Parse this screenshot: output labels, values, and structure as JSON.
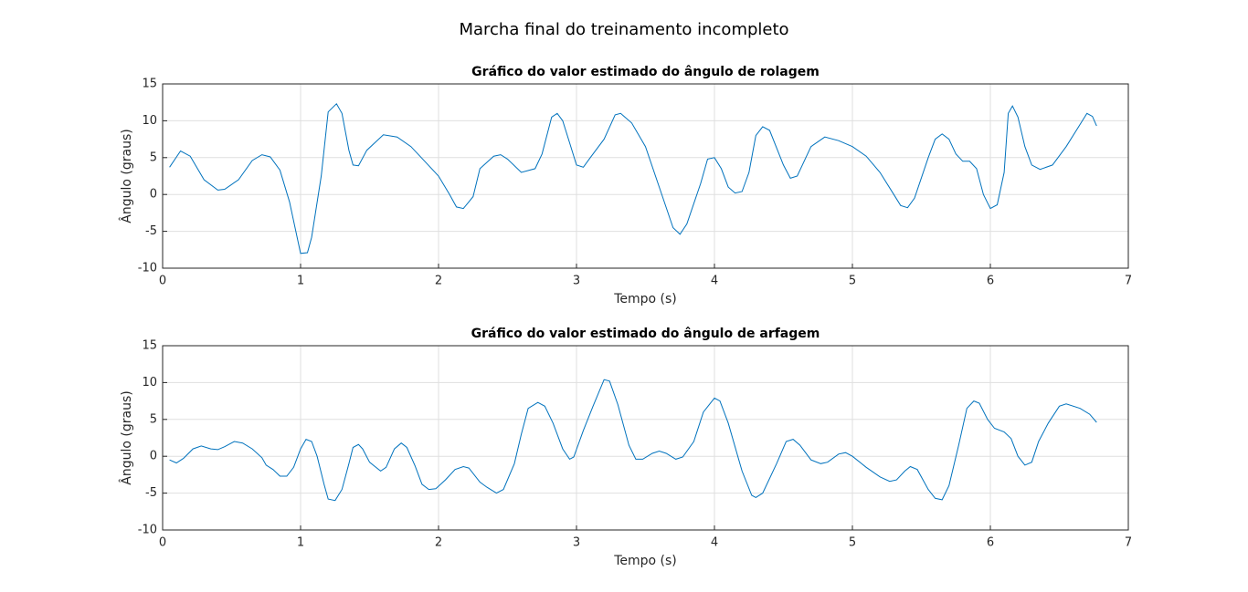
{
  "title": "Marcha final do treinamento incompleto",
  "chart_data": [
    {
      "type": "line",
      "title": "Gráfico do valor estimado do ângulo de rolagem",
      "xlabel": "Tempo (s)",
      "ylabel": "Ângulo (graus)",
      "x": [
        0.05,
        0.13,
        0.2,
        0.3,
        0.4,
        0.45,
        0.55,
        0.65,
        0.72,
        0.78,
        0.85,
        0.92,
        1.0,
        1.05,
        1.08,
        1.15,
        1.2,
        1.26,
        1.3,
        1.35,
        1.38,
        1.42,
        1.48,
        1.6,
        1.7,
        1.8,
        1.9,
        2.0,
        2.08,
        2.13,
        2.18,
        2.25,
        2.3,
        2.4,
        2.45,
        2.5,
        2.6,
        2.7,
        2.75,
        2.82,
        2.86,
        2.9,
        2.95,
        3.0,
        3.05,
        3.1,
        3.2,
        3.28,
        3.32,
        3.4,
        3.5,
        3.6,
        3.7,
        3.75,
        3.8,
        3.9,
        3.95,
        4.0,
        4.05,
        4.1,
        4.15,
        4.2,
        4.25,
        4.3,
        4.35,
        4.4,
        4.5,
        4.55,
        4.6,
        4.7,
        4.8,
        4.9,
        5.0,
        5.1,
        5.2,
        5.3,
        5.35,
        5.4,
        5.45,
        5.55,
        5.6,
        5.65,
        5.7,
        5.75,
        5.8,
        5.85,
        5.9,
        5.95,
        6.0,
        6.05,
        6.1,
        6.13,
        6.16,
        6.2,
        6.25,
        6.3,
        6.36,
        6.45,
        6.55,
        6.65,
        6.7,
        6.74,
        6.77
      ],
      "values": [
        3.7,
        5.9,
        5.2,
        2.0,
        0.6,
        0.7,
        2.0,
        4.6,
        5.4,
        5.1,
        3.3,
        -1.0,
        -8.0,
        -7.9,
        -5.8,
        2.5,
        11.2,
        12.3,
        11.0,
        6.0,
        4.0,
        3.9,
        6.0,
        8.1,
        7.8,
        6.5,
        4.5,
        2.5,
        0.0,
        -1.7,
        -1.9,
        -0.3,
        3.5,
        5.2,
        5.4,
        4.8,
        3.0,
        3.5,
        5.5,
        10.5,
        11.0,
        10.0,
        7.0,
        4.0,
        3.7,
        5.0,
        7.5,
        10.8,
        11.0,
        9.7,
        6.5,
        1.0,
        -4.5,
        -5.4,
        -4.0,
        1.5,
        4.8,
        5.0,
        3.5,
        1.0,
        0.2,
        0.4,
        3.0,
        8.0,
        9.2,
        8.7,
        4.0,
        2.2,
        2.5,
        6.5,
        7.8,
        7.3,
        6.5,
        5.2,
        3.0,
        0.0,
        -1.5,
        -1.8,
        -0.5,
        5.0,
        7.5,
        8.2,
        7.5,
        5.5,
        4.5,
        4.5,
        3.5,
        0.0,
        -1.9,
        -1.4,
        3.0,
        11.0,
        12.0,
        10.5,
        6.5,
        4.0,
        3.4,
        4.0,
        6.5,
        9.5,
        11.0,
        10.6,
        9.3
      ],
      "color": "#0072bd",
      "xlim": [
        0,
        7
      ],
      "ylim": [
        -10,
        15
      ],
      "xticks": [
        0,
        1,
        2,
        3,
        4,
        5,
        6,
        7
      ],
      "yticks": [
        -10,
        -5,
        0,
        5,
        10,
        15
      ],
      "grid": true
    },
    {
      "type": "line",
      "title": "Gráfico do valor estimado do ângulo de arfagem",
      "xlabel": "Tempo (s)",
      "ylabel": "Ângulo (graus)",
      "x": [
        0.05,
        0.1,
        0.15,
        0.22,
        0.28,
        0.35,
        0.4,
        0.45,
        0.52,
        0.58,
        0.65,
        0.72,
        0.75,
        0.8,
        0.85,
        0.9,
        0.95,
        1.0,
        1.04,
        1.08,
        1.12,
        1.17,
        1.2,
        1.25,
        1.3,
        1.35,
        1.38,
        1.42,
        1.45,
        1.5,
        1.58,
        1.62,
        1.68,
        1.73,
        1.77,
        1.83,
        1.88,
        1.93,
        1.98,
        2.05,
        2.12,
        2.18,
        2.22,
        2.3,
        2.35,
        2.42,
        2.47,
        2.55,
        2.6,
        2.65,
        2.72,
        2.77,
        2.83,
        2.9,
        2.95,
        2.98,
        3.05,
        3.12,
        3.2,
        3.24,
        3.3,
        3.38,
        3.43,
        3.48,
        3.55,
        3.6,
        3.65,
        3.72,
        3.77,
        3.85,
        3.92,
        4.0,
        4.04,
        4.1,
        4.2,
        4.27,
        4.3,
        4.35,
        4.45,
        4.52,
        4.57,
        4.62,
        4.7,
        4.77,
        4.82,
        4.9,
        4.95,
        5.0,
        5.1,
        5.2,
        5.27,
        5.32,
        5.38,
        5.42,
        5.47,
        5.55,
        5.6,
        5.65,
        5.7,
        5.77,
        5.83,
        5.88,
        5.92,
        5.98,
        6.03,
        6.1,
        6.15,
        6.2,
        6.25,
        6.3,
        6.35,
        6.42,
        6.5,
        6.55,
        6.65,
        6.72,
        6.77
      ],
      "values": [
        -0.5,
        -0.9,
        -0.3,
        1.0,
        1.4,
        1.0,
        0.9,
        1.3,
        2.0,
        1.8,
        1.0,
        -0.2,
        -1.2,
        -1.8,
        -2.7,
        -2.7,
        -1.5,
        1.0,
        2.3,
        2.0,
        0.0,
        -3.8,
        -5.8,
        -6.0,
        -4.5,
        -1.0,
        1.2,
        1.6,
        1.0,
        -0.8,
        -2.0,
        -1.5,
        1.0,
        1.8,
        1.2,
        -1.3,
        -3.8,
        -4.5,
        -4.4,
        -3.2,
        -1.8,
        -1.4,
        -1.6,
        -3.5,
        -4.2,
        -5.0,
        -4.5,
        -1.0,
        3.0,
        6.5,
        7.3,
        6.8,
        4.5,
        1.0,
        -0.4,
        -0.1,
        3.5,
        6.8,
        10.4,
        10.2,
        7.0,
        1.5,
        -0.4,
        -0.4,
        0.4,
        0.7,
        0.4,
        -0.4,
        -0.1,
        2.0,
        6.0,
        7.9,
        7.5,
        4.5,
        -2.0,
        -5.3,
        -5.6,
        -5.0,
        -1.0,
        2.0,
        2.3,
        1.5,
        -0.5,
        -1.0,
        -0.8,
        0.3,
        0.5,
        0.0,
        -1.5,
        -2.8,
        -3.4,
        -3.2,
        -2.0,
        -1.4,
        -1.8,
        -4.5,
        -5.7,
        -5.9,
        -4.0,
        1.5,
        6.5,
        7.5,
        7.2,
        5.0,
        3.8,
        3.3,
        2.4,
        0.0,
        -1.2,
        -0.8,
        2.0,
        4.5,
        6.8,
        7.1,
        6.5,
        5.7,
        4.6
      ],
      "color": "#0072bd",
      "xlim": [
        0,
        7
      ],
      "ylim": [
        -10,
        15
      ],
      "xticks": [
        0,
        1,
        2,
        3,
        4,
        5,
        6,
        7
      ],
      "yticks": [
        -10,
        -5,
        0,
        5,
        10,
        15
      ],
      "grid": true
    }
  ]
}
